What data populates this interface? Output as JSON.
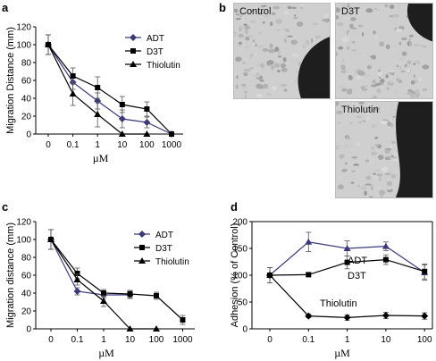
{
  "panels": {
    "a": {
      "letter": "a"
    },
    "b": {
      "letter": "b",
      "images": [
        {
          "label": "Control"
        },
        {
          "label": "D3T"
        },
        {
          "label": "Thiolutin"
        }
      ]
    },
    "c": {
      "letter": "c"
    },
    "d": {
      "letter": "d"
    }
  },
  "colors": {
    "adt": "#3a3a7a",
    "d3t": "#000000",
    "thiolutin": "#000000",
    "axis": "#000000"
  },
  "chart_data": [
    {
      "id": "a",
      "type": "line",
      "xlabel": "µM",
      "ylabel": "Migration Distance (mm)",
      "x": [
        "0",
        "0.1",
        "1",
        "10",
        "100",
        "1000"
      ],
      "ylim": [
        0,
        120
      ],
      "yticks": [
        0,
        20,
        40,
        60,
        80,
        100,
        120
      ],
      "legend_position": "top-right",
      "series": [
        {
          "name": "ADT",
          "marker": "diamond",
          "values": [
            100,
            58,
            37,
            17,
            13,
            0
          ],
          "err": [
            11,
            8,
            9,
            10,
            6,
            0
          ]
        },
        {
          "name": "D3T",
          "marker": "square",
          "values": [
            100,
            65,
            52,
            33,
            28,
            0
          ],
          "err": [
            11,
            9,
            12,
            9,
            8,
            0
          ]
        },
        {
          "name": "Thiolutin",
          "marker": "triangle",
          "values": [
            100,
            45,
            22,
            0,
            0,
            null
          ],
          "err": [
            11,
            13,
            14,
            0,
            0,
            0
          ]
        }
      ]
    },
    {
      "id": "c",
      "type": "line",
      "xlabel": "µM",
      "ylabel": "Migration distance (mm)",
      "x": [
        "0",
        "0.1",
        "1",
        "10",
        "100",
        "1000"
      ],
      "ylim": [
        0,
        120
      ],
      "yticks": [
        0,
        20,
        40,
        60,
        80,
        100,
        120
      ],
      "legend_position": "top-right",
      "series": [
        {
          "name": "ADT",
          "marker": "diamond",
          "values": [
            100,
            42,
            38,
            38,
            null,
            null
          ],
          "err": [
            11,
            4,
            4,
            4,
            0,
            0
          ]
        },
        {
          "name": "D3T",
          "marker": "square",
          "values": [
            100,
            62,
            40,
            39,
            37,
            10
          ],
          "err": [
            11,
            6,
            4,
            4,
            4,
            5
          ]
        },
        {
          "name": "Thiolutin",
          "marker": "triangle",
          "values": [
            100,
            55,
            31,
            0,
            0,
            null
          ],
          "err": [
            11,
            6,
            6,
            0,
            0,
            0
          ]
        }
      ]
    },
    {
      "id": "d",
      "type": "line",
      "xlabel": "µM",
      "ylabel": "Adhesion (% of Control)",
      "x": [
        "0",
        "0.1",
        "1",
        "10",
        "100"
      ],
      "ylim": [
        0,
        200
      ],
      "yticks": [
        0,
        50,
        100,
        150,
        200
      ],
      "legend_position": "inline",
      "series": [
        {
          "name": "ADT",
          "marker": "triangle",
          "values": [
            100,
            162,
            150,
            154,
            105
          ],
          "err": [
            14,
            18,
            14,
            8,
            14
          ]
        },
        {
          "name": "D3T",
          "marker": "square",
          "values": [
            100,
            101,
            124,
            129,
            107
          ],
          "err": [
            14,
            3,
            12,
            9,
            14
          ]
        },
        {
          "name": "Thiolutin",
          "marker": "diamond",
          "values": [
            100,
            24,
            21,
            25,
            24
          ],
          "err": [
            14,
            3,
            5,
            6,
            6
          ]
        }
      ]
    }
  ]
}
